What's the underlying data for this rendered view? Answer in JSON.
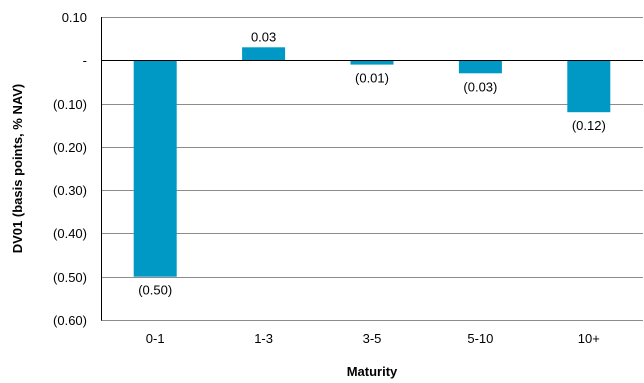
{
  "chart_data": {
    "type": "bar",
    "categories": [
      "0-1",
      "1-3",
      "3-5",
      "5-10",
      "10+"
    ],
    "values": [
      -0.5,
      0.03,
      -0.01,
      -0.03,
      -0.12
    ],
    "data_labels": [
      "(0.50)",
      "0.03",
      "(0.01)",
      "(0.03)",
      "(0.12)"
    ],
    "xlabel": "Maturity",
    "ylabel": "DV01 (basis points, % NAV)",
    "ylim": [
      -0.6,
      0.1
    ],
    "yticks": [
      {
        "value": 0.1,
        "label": "0.10"
      },
      {
        "value": 0.0,
        "label": "-"
      },
      {
        "value": -0.1,
        "label": "(0.10)"
      },
      {
        "value": -0.2,
        "label": "(0.20)"
      },
      {
        "value": -0.3,
        "label": "(0.30)"
      },
      {
        "value": -0.4,
        "label": "(0.40)"
      },
      {
        "value": -0.5,
        "label": "(0.50)"
      },
      {
        "value": -0.6,
        "label": "(0.60)"
      }
    ],
    "grid": true,
    "legend": "none",
    "bar_color": "#0099c6"
  }
}
